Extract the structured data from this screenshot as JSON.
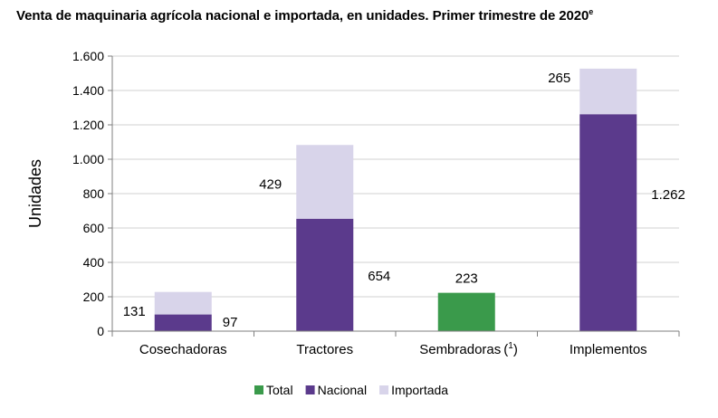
{
  "chart_data": {
    "type": "bar",
    "stacked": true,
    "title": "Venta de maquinaria agrícola nacional e importada, en unidades. Primer trimestre de 2020",
    "title_superscript": "e",
    "ylabel": "Unidades",
    "xlabel": "",
    "ylim": [
      0,
      1600
    ],
    "yticks": [
      0,
      200,
      400,
      600,
      800,
      1000,
      1200,
      1400,
      1600
    ],
    "ytick_labels": [
      "0",
      "200",
      "400",
      "600",
      "800",
      "1.000",
      "1.200",
      "1.400",
      "1.600"
    ],
    "grid": true,
    "legend_position": "bottom",
    "categories": [
      "Cosechadoras",
      "Tractores",
      "Sembradoras",
      "Implementos"
    ],
    "category_footnote": [
      "",
      "",
      "(1)",
      ""
    ],
    "series": [
      {
        "name": "Total",
        "color": "#3a9a4b",
        "values": [
          null,
          null,
          223,
          null
        ]
      },
      {
        "name": "Nacional",
        "color": "#5b3a8c",
        "values": [
          97,
          654,
          null,
          1262
        ]
      },
      {
        "name": "Importada",
        "color": "#d8d4ea",
        "values": [
          131,
          429,
          null,
          265
        ]
      }
    ],
    "data_labels": {
      "Total": [
        "",
        "",
        "223",
        ""
      ],
      "Nacional": [
        "97",
        "654",
        "",
        "1.262"
      ],
      "Importada": [
        "131",
        "429",
        "",
        "265"
      ]
    }
  }
}
